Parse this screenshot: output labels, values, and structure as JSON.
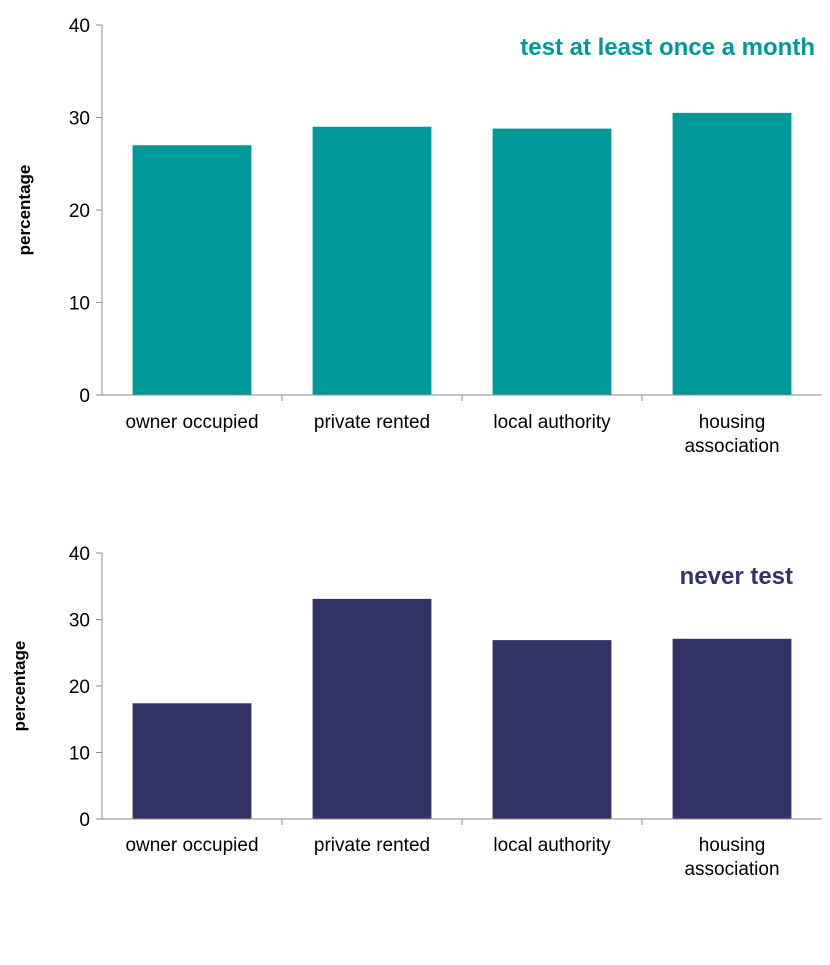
{
  "chart_data": [
    {
      "type": "bar",
      "title": "test at least once a month",
      "ylabel": "percentage",
      "xlabel": "",
      "ylim": [
        0,
        40
      ],
      "yticks": [
        0,
        10,
        20,
        30,
        40
      ],
      "categories": [
        [
          "owner occupied"
        ],
        [
          "private rented"
        ],
        [
          "local authority"
        ],
        [
          "housing",
          "association"
        ]
      ],
      "values": [
        27.0,
        29.0,
        28.8,
        30.5
      ],
      "color": "#009999",
      "title_color": "#009999",
      "legend": "none",
      "grid": false
    },
    {
      "type": "bar",
      "title": "never test",
      "ylabel": "percentage",
      "xlabel": "",
      "ylim": [
        0,
        40
      ],
      "yticks": [
        0,
        10,
        20,
        30,
        40
      ],
      "categories": [
        [
          "owner occupied"
        ],
        [
          "private rented"
        ],
        [
          "local authority"
        ],
        [
          "housing",
          "association"
        ]
      ],
      "values": [
        17.4,
        33.1,
        26.9,
        27.1
      ],
      "color": "#333366",
      "title_color": "#333366",
      "legend": "none",
      "grid": false
    }
  ]
}
